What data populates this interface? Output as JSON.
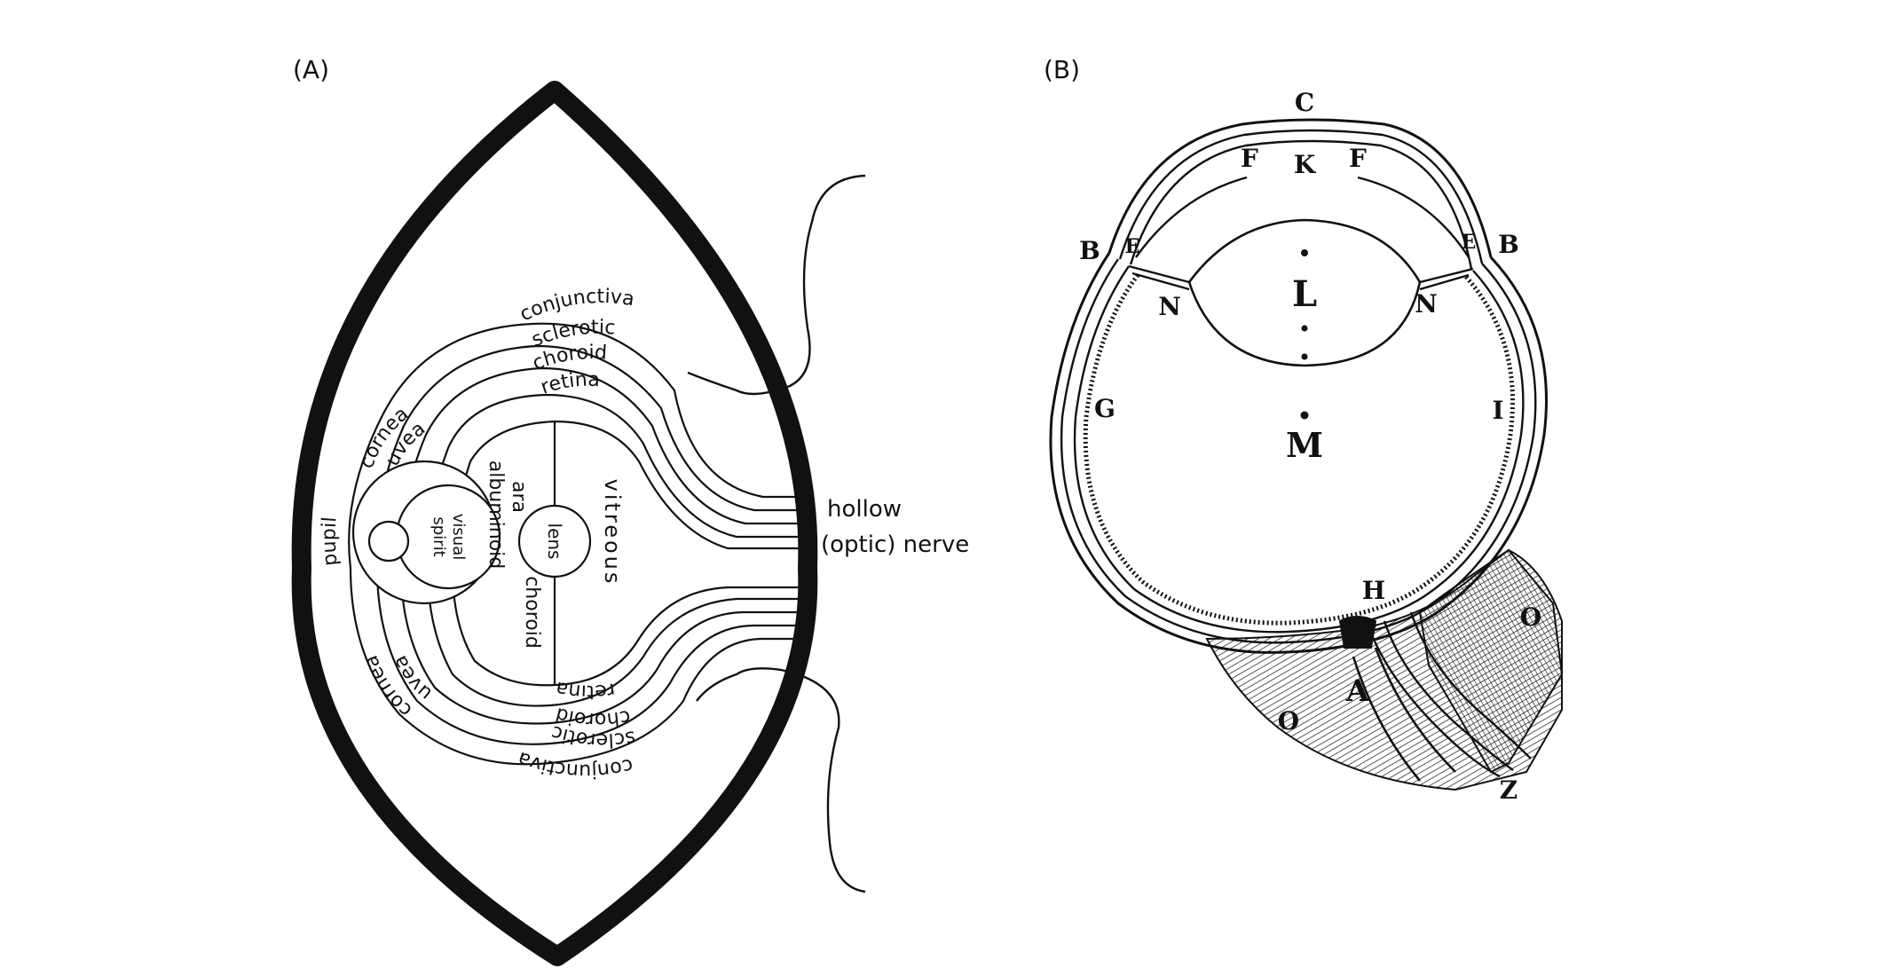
{
  "panel_a": {
    "label": "(A)",
    "layers_top": {
      "conjunctiva": "conjunctiva",
      "sclerotic": "sclerotic",
      "choroid": "choroid",
      "retina": "retina"
    },
    "layers_bottom": {
      "conjunctiva": "conjunctiva",
      "sclerotic": "sclerotic",
      "choroid": "choroid",
      "retina": "retina"
    },
    "cornea_top": "cornea",
    "cornea_bottom": "cornea",
    "uvea_top": "uvea",
    "uvea_bottom": "uvea",
    "pupil": "pupil",
    "visual_spirit": [
      "visual",
      "spirit"
    ],
    "lens": "lens",
    "aranea_albuminoid": [
      "ara",
      "albuminoid"
    ],
    "choroid_inner": "choroid",
    "vitreous": "vitreous",
    "nerve": [
      "hollow",
      "(optic) nerve"
    ]
  },
  "panel_b": {
    "label": "(B)",
    "letters": {
      "C": "C",
      "K": "K",
      "F_left": "F",
      "F_right": "F",
      "B_left": "B",
      "B_right": "B",
      "E_left": "E",
      "E_right": "E",
      "N_left": "N",
      "N_right": "N",
      "L": "L",
      "M": "M",
      "G": "G",
      "I": "I",
      "H": "H",
      "A": "A",
      "O_left": "O",
      "O_right": "O",
      "Z": "Z"
    }
  }
}
